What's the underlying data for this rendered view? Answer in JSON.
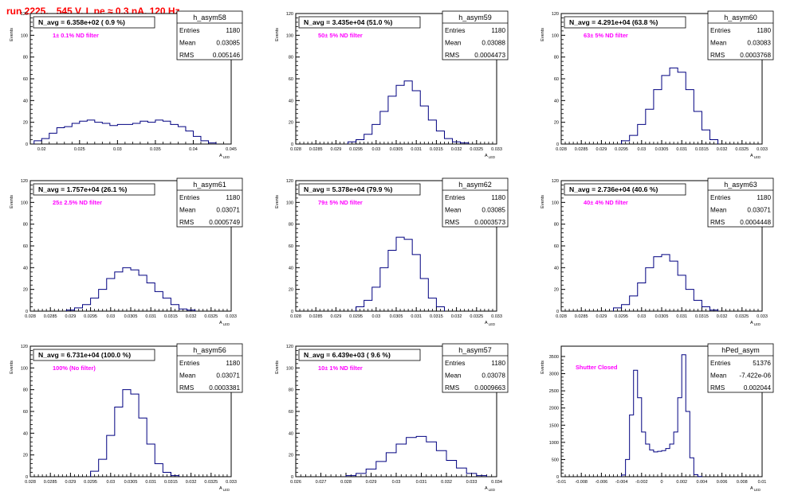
{
  "page_title": "run 2225,   545 V, I_pe ≈ 0.3 nA, 120 Hz",
  "stats_labels": {
    "entries": "Entries",
    "mean": "Mean",
    "rms": "RMS"
  },
  "chart_data": [
    {
      "type": "histogram",
      "name": "h_asym58",
      "nAvg": "N_avg = 6.358e+02 ( 0.9 %)",
      "filter": "1± 0.1% ND filter",
      "entries": "1180",
      "mean": "0.03085",
      "rms": "0.005146",
      "ylabel": "Events",
      "xlabel": "A_LED",
      "xlim": [
        0.0185,
        0.045
      ],
      "ylim": [
        0,
        120
      ],
      "yticks": [
        0,
        20,
        40,
        60,
        80,
        100,
        120
      ],
      "xticks": [
        "0.02",
        "0.025",
        "0.03",
        "0.035",
        "0.04",
        "0.045"
      ],
      "x": [
        0.0195,
        0.0205,
        0.0215,
        0.0225,
        0.0235,
        0.0245,
        0.0255,
        0.0265,
        0.0275,
        0.0285,
        0.0295,
        0.0305,
        0.0315,
        0.0325,
        0.0335,
        0.0345,
        0.0355,
        0.0365,
        0.0375,
        0.0385,
        0.0395,
        0.0405,
        0.0415,
        0.0425
      ],
      "values": [
        3,
        5,
        10,
        15,
        16,
        19,
        21,
        22,
        20,
        19,
        17,
        18,
        18,
        19,
        21,
        20,
        22,
        21,
        18,
        16,
        12,
        7,
        3,
        1
      ]
    },
    {
      "type": "histogram",
      "name": "h_asym59",
      "nAvg": "N_avg = 3.435e+04 (51.0 %)",
      "filter": "50± 5% ND filter",
      "entries": "1180",
      "mean": "0.03088",
      "rms": "0.0004473",
      "ylabel": "Events",
      "xlabel": "A_LED",
      "xlim": [
        0.028,
        0.033
      ],
      "ylim": [
        0,
        120
      ],
      "yticks": [
        0,
        20,
        40,
        60,
        80,
        100,
        120
      ],
      "xticks": [
        "0.028",
        "0.0285",
        "0.029",
        "0.0295",
        "0.03",
        "0.0305",
        "0.031",
        "0.0315",
        "0.032",
        "0.0325",
        "0.033"
      ],
      "x": [
        0.0294,
        0.0296,
        0.0298,
        0.03,
        0.0302,
        0.0304,
        0.0306,
        0.0308,
        0.031,
        0.0312,
        0.0314,
        0.0316,
        0.0318,
        0.032,
        0.0322
      ],
      "values": [
        2,
        4,
        9,
        18,
        30,
        44,
        54,
        58,
        49,
        35,
        22,
        12,
        5,
        2,
        1
      ]
    },
    {
      "type": "histogram",
      "name": "h_asym60",
      "nAvg": "N_avg = 4.291e+04 (63.8 %)",
      "filter": "63± 5% ND filter",
      "entries": "1180",
      "mean": "0.03083",
      "rms": "0.0003768",
      "ylabel": "Events",
      "xlabel": "A_LED",
      "xlim": [
        0.028,
        0.033
      ],
      "ylim": [
        0,
        120
      ],
      "yticks": [
        0,
        20,
        40,
        60,
        80,
        100,
        120
      ],
      "xticks": [
        "0.028",
        "0.0285",
        "0.029",
        "0.0295",
        "0.03",
        "0.0305",
        "0.031",
        "0.0315",
        "0.032",
        "0.0325",
        "0.033"
      ],
      "x": [
        0.0296,
        0.0298,
        0.03,
        0.0302,
        0.0304,
        0.0306,
        0.0308,
        0.031,
        0.0312,
        0.0314,
        0.0316,
        0.0318
      ],
      "values": [
        3,
        8,
        18,
        32,
        50,
        63,
        70,
        66,
        50,
        30,
        13,
        4
      ]
    },
    {
      "type": "histogram",
      "name": "h_asym61",
      "nAvg": "N_avg = 1.757e+04 (26.1 %)",
      "filter": "25± 2.5% ND filter",
      "entries": "1180",
      "mean": "0.03071",
      "rms": "0.0005749",
      "ylabel": "Events",
      "xlabel": "A_LED",
      "xlim": [
        0.028,
        0.033
      ],
      "ylim": [
        0,
        120
      ],
      "yticks": [
        0,
        20,
        40,
        60,
        80,
        100,
        120
      ],
      "xticks": [
        "0.028",
        "0.0285",
        "0.029",
        "0.0295",
        "0.03",
        "0.0305",
        "0.031",
        "0.0315",
        "0.032",
        "0.0325",
        "0.033"
      ],
      "x": [
        0.029,
        0.0292,
        0.0294,
        0.0296,
        0.0298,
        0.03,
        0.0302,
        0.0304,
        0.0306,
        0.0308,
        0.031,
        0.0312,
        0.0314,
        0.0316,
        0.0318,
        0.032
      ],
      "values": [
        1,
        3,
        6,
        12,
        20,
        30,
        36,
        40,
        38,
        33,
        26,
        18,
        12,
        6,
        2,
        1
      ]
    },
    {
      "type": "histogram",
      "name": "h_asym62",
      "nAvg": "N_avg = 5.378e+04 (79.9 %)",
      "filter": "79± 5% ND filter",
      "entries": "1180",
      "mean": "0.03085",
      "rms": "0.0003573",
      "ylabel": "Events",
      "xlabel": "A_LED",
      "xlim": [
        0.028,
        0.033
      ],
      "ylim": [
        0,
        120
      ],
      "yticks": [
        0,
        20,
        40,
        60,
        80,
        100,
        120
      ],
      "xticks": [
        "0.028",
        "0.0285",
        "0.029",
        "0.0295",
        "0.03",
        "0.0305",
        "0.031",
        "0.0315",
        "0.032",
        "0.0325",
        "0.033"
      ],
      "x": [
        0.0296,
        0.0298,
        0.03,
        0.0302,
        0.0304,
        0.0306,
        0.0308,
        0.031,
        0.0312,
        0.0314,
        0.0316
      ],
      "values": [
        4,
        10,
        22,
        40,
        56,
        68,
        66,
        52,
        30,
        12,
        4
      ]
    },
    {
      "type": "histogram",
      "name": "h_asym63",
      "nAvg": "N_avg = 2.736e+04 (40.6 %)",
      "filter": "40± 4% ND filter",
      "entries": "1180",
      "mean": "0.03071",
      "rms": "0.0004448",
      "ylabel": "Events",
      "xlabel": "A_LED",
      "xlim": [
        0.028,
        0.033
      ],
      "ylim": [
        0,
        120
      ],
      "yticks": [
        0,
        20,
        40,
        60,
        80,
        100,
        120
      ],
      "xticks": [
        "0.028",
        "0.0285",
        "0.029",
        "0.0295",
        "0.03",
        "0.0305",
        "0.031",
        "0.0315",
        "0.032",
        "0.0325",
        "0.033"
      ],
      "x": [
        0.0294,
        0.0296,
        0.0298,
        0.03,
        0.0302,
        0.0304,
        0.0306,
        0.0308,
        0.031,
        0.0312,
        0.0314,
        0.0316,
        0.0318
      ],
      "values": [
        3,
        6,
        14,
        26,
        40,
        50,
        52,
        46,
        33,
        20,
        10,
        4,
        1
      ]
    },
    {
      "type": "histogram",
      "name": "h_asym56",
      "nAvg": "N_avg = 6.731e+04 (100.0 %)",
      "filter": "100% (No filter)",
      "entries": "1180",
      "mean": "0.03071",
      "rms": "0.0003381",
      "ylabel": "Events",
      "xlabel": "A_LED",
      "xlim": [
        0.028,
        0.033
      ],
      "ylim": [
        0,
        120
      ],
      "yticks": [
        0,
        20,
        40,
        60,
        80,
        100,
        120
      ],
      "xticks": [
        "0.028",
        "0.0285",
        "0.029",
        "0.0295",
        "0.03",
        "0.0305",
        "0.031",
        "0.0315",
        "0.032",
        "0.0325",
        "0.033"
      ],
      "x": [
        0.0296,
        0.0298,
        0.03,
        0.0302,
        0.0304,
        0.0306,
        0.0308,
        0.031,
        0.0312,
        0.0314,
        0.0316
      ],
      "values": [
        5,
        16,
        38,
        64,
        80,
        76,
        54,
        30,
        12,
        4,
        1
      ]
    },
    {
      "type": "histogram",
      "name": "h_asym57",
      "nAvg": "N_avg = 6.439e+03 ( 9.6 %)",
      "filter": "10± 1% ND filter",
      "entries": "1180",
      "mean": "0.03078",
      "rms": "0.0009663",
      "ylabel": "Events",
      "xlabel": "A_LED",
      "xlim": [
        0.026,
        0.034
      ],
      "ylim": [
        0,
        120
      ],
      "yticks": [
        0,
        20,
        40,
        60,
        80,
        100,
        120
      ],
      "xticks": [
        "0.026",
        "0.027",
        "0.028",
        "0.029",
        "0.03",
        "0.031",
        "0.032",
        "0.033",
        "0.034"
      ],
      "x": [
        0.0282,
        0.0286,
        0.029,
        0.0294,
        0.0298,
        0.0302,
        0.0306,
        0.031,
        0.0314,
        0.0318,
        0.0322,
        0.0326,
        0.033,
        0.0334
      ],
      "values": [
        1,
        3,
        7,
        14,
        22,
        30,
        36,
        37,
        32,
        24,
        15,
        8,
        3,
        1
      ]
    },
    {
      "type": "histogram",
      "name": "hPed_asym",
      "nAvg": "",
      "filter": "Shutter Closed",
      "entries": "51376",
      "mean": "-7.422e-06",
      "rms": "0.002044",
      "ylabel": "Events",
      "xlabel": "A_LED",
      "xlim": [
        -0.01,
        0.01
      ],
      "ylim": [
        0,
        3800
      ],
      "yticks": [
        0,
        500,
        1000,
        1500,
        2000,
        2500,
        3000,
        3500
      ],
      "xticks": [
        "-0.01",
        "-0.008",
        "-0.006",
        "-0.004",
        "-0.002",
        "0",
        "0.002",
        "0.004",
        "0.006",
        "0.008",
        "0.01"
      ],
      "x": [
        -0.0038,
        -0.0034,
        -0.003,
        -0.0026,
        -0.0022,
        -0.0018,
        -0.0014,
        -0.001,
        -0.0006,
        -0.0002,
        0.0002,
        0.0006,
        0.001,
        0.0014,
        0.0018,
        0.0022,
        0.0026,
        0.003,
        0.0034,
        0.0038
      ],
      "values": [
        50,
        500,
        1800,
        3100,
        2300,
        1300,
        950,
        780,
        720,
        740,
        760,
        820,
        950,
        1300,
        2300,
        3550,
        1900,
        550,
        60,
        5
      ]
    }
  ]
}
